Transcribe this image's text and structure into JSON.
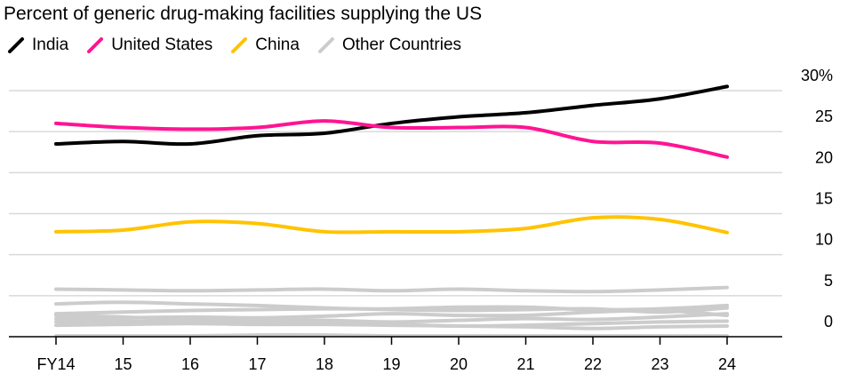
{
  "chart_data": {
    "type": "line",
    "title": "Percent of generic drug-making facilities supplying the US",
    "x": [
      "FY14",
      "15",
      "16",
      "17",
      "18",
      "19",
      "20",
      "21",
      "22",
      "23",
      "24"
    ],
    "ylim": [
      0,
      30
    ],
    "y_ticks": [
      "30%",
      "25",
      "20",
      "15",
      "10",
      "5",
      "0"
    ],
    "y_tick_values": [
      30,
      25,
      20,
      15,
      10,
      5,
      0
    ],
    "grid": true,
    "legend_position": "top-left",
    "series": [
      {
        "name": "India",
        "color": "#000000",
        "values": [
          23.5,
          23.8,
          23.5,
          24.5,
          24.8,
          26.0,
          26.8,
          27.3,
          28.2,
          29.0,
          30.5
        ]
      },
      {
        "name": "United States",
        "color": "#ff1493",
        "values": [
          26.0,
          25.5,
          25.3,
          25.5,
          26.3,
          25.5,
          25.5,
          25.5,
          23.8,
          23.6,
          21.9
        ]
      },
      {
        "name": "China",
        "color": "#ffc300",
        "values": [
          12.8,
          13.0,
          14.0,
          13.8,
          12.8,
          12.8,
          12.8,
          13.2,
          14.5,
          14.3,
          12.7
        ]
      },
      {
        "name": "Other Countries",
        "color": "#cccccc",
        "values": [
          5.8,
          5.7,
          5.6,
          5.7,
          5.8,
          5.6,
          5.8,
          5.6,
          5.5,
          5.7,
          6.0
        ]
      },
      {
        "name": "",
        "color": "#cccccc",
        "values": [
          4.0,
          4.2,
          4.0,
          3.8,
          3.5,
          3.3,
          3.2,
          3.3,
          3.4,
          3.0,
          3.5
        ]
      },
      {
        "name": "",
        "color": "#cccccc",
        "values": [
          2.8,
          3.0,
          3.2,
          3.3,
          3.4,
          3.4,
          3.6,
          3.6,
          3.3,
          3.4,
          3.8
        ]
      },
      {
        "name": "",
        "color": "#cccccc",
        "values": [
          2.2,
          2.3,
          2.4,
          2.3,
          2.5,
          2.8,
          2.6,
          2.6,
          3.0,
          3.2,
          2.6
        ]
      },
      {
        "name": "",
        "color": "#cccccc",
        "values": [
          2.6,
          2.4,
          2.1,
          2.1,
          2.0,
          1.8,
          2.0,
          2.2,
          2.1,
          2.4,
          2.8
        ]
      },
      {
        "name": "",
        "color": "#cccccc",
        "values": [
          1.8,
          1.9,
          1.8,
          1.8,
          1.6,
          1.5,
          1.3,
          1.4,
          1.6,
          1.8,
          1.9
        ]
      },
      {
        "name": "",
        "color": "#cccccc",
        "values": [
          1.4,
          1.5,
          1.6,
          1.5,
          1.5,
          1.4,
          1.3,
          1.2,
          1.0,
          1.2,
          1.3
        ]
      },
      {
        "name": "",
        "color": "#cccccc",
        "values": [
          0.1,
          0.1,
          0.1,
          0.2,
          0.2,
          0.1,
          0.1,
          0.1,
          0.1,
          0.1,
          0.1
        ]
      }
    ]
  }
}
